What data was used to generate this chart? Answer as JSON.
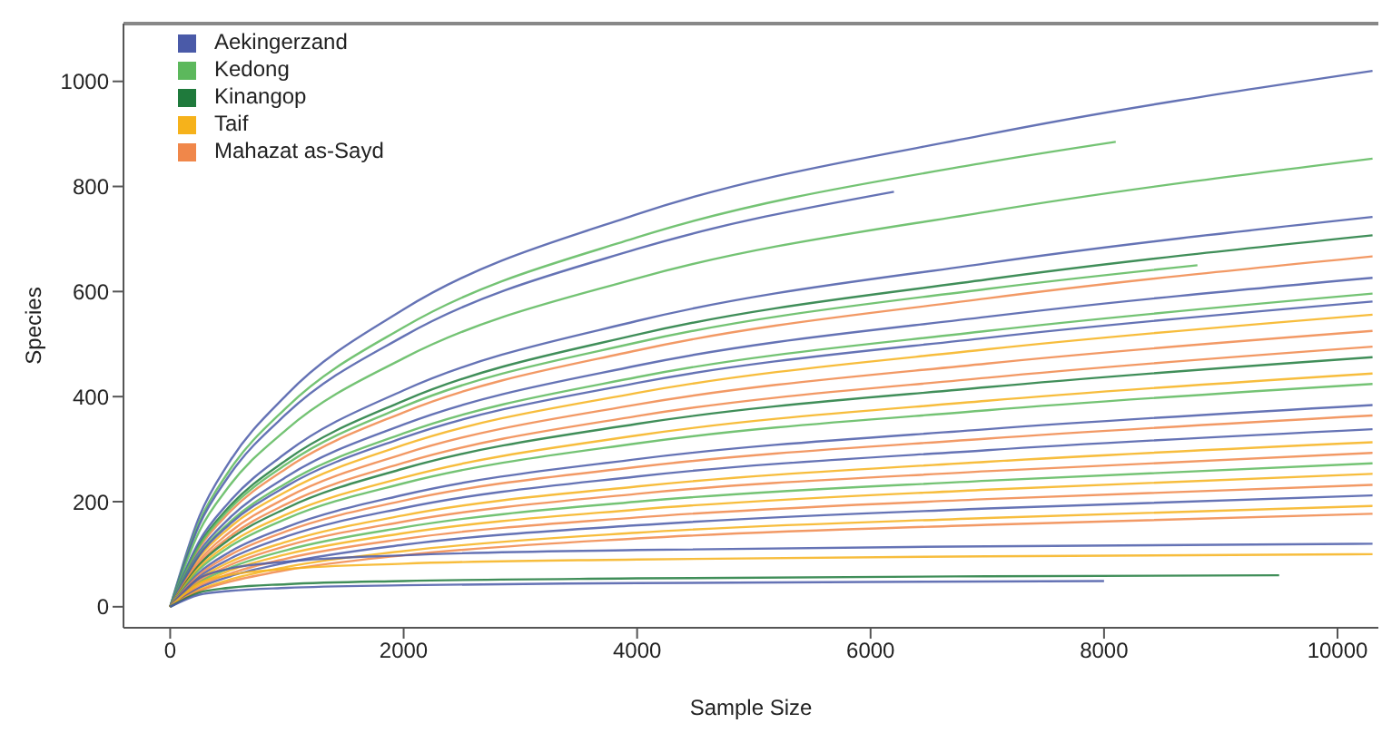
{
  "chart_data": {
    "type": "line",
    "xlabel": "Sample Size",
    "ylabel": "Species",
    "x": [
      0,
      250,
      500,
      1000,
      2000,
      4000,
      7000,
      10300
    ],
    "xlim": [
      -400,
      10350
    ],
    "xticks": [
      0,
      2000,
      4000,
      6000,
      8000,
      10000
    ],
    "ylim": [
      -40,
      1110
    ],
    "yticks": [
      0,
      200,
      400,
      600,
      800,
      1000
    ],
    "grid": false,
    "legend": "top left",
    "marker": "none",
    "line_style": "solid",
    "series": [
      {
        "name": "Aekingerzand",
        "color": "#4a5aa8",
        "values": [
          0,
          172,
          273,
          404,
          566,
          747,
          899,
          1020
        ]
      },
      {
        "name": "Kedong",
        "color": "#5cb85c",
        "x": [
          0,
          250,
          500,
          1000,
          2000,
          4000,
          7000,
          8100
        ],
        "values": [
          0,
          162,
          257,
          380,
          532,
          703,
          846,
          885
        ]
      },
      {
        "name": "Kinangop",
        "color": "#1f7a3c",
        "values": [
          0,
          119,
          189,
          280,
          392,
          518,
          623,
          707
        ]
      },
      {
        "name": "Taif",
        "color": "#f6b21b",
        "values": [
          0,
          94,
          149,
          220,
          308,
          407,
          490,
          556
        ]
      },
      {
        "name": "Mahazat as-Sayd",
        "color": "#f0874a",
        "values": [
          0,
          112,
          178,
          264,
          370,
          488,
          587,
          667
        ]
      },
      {
        "color": "#4a5aa8",
        "x": [
          0,
          250,
          500,
          1000,
          2000,
          4000,
          6200
        ],
        "values": [
          0,
          156,
          248,
          368,
          515,
          681,
          790
        ]
      },
      {
        "color": "#5cb85c",
        "values": [
          0,
          144,
          228,
          338,
          473,
          625,
          752,
          853
        ]
      },
      {
        "color": "#4a5aa8",
        "values": [
          0,
          125,
          198,
          294,
          412,
          544,
          654,
          742
        ]
      },
      {
        "color": "#5cb85c",
        "x": [
          0,
          250,
          500,
          1000,
          2000,
          4000,
          7000,
          8800
        ],
        "values": [
          0,
          116,
          184,
          272,
          381,
          503,
          605,
          650
        ]
      },
      {
        "color": "#4a5aa8",
        "values": [
          0,
          105,
          167,
          248,
          347,
          459,
          552,
          626
        ]
      },
      {
        "color": "#5cb85c",
        "values": [
          0,
          100,
          159,
          236,
          330,
          437,
          525,
          596
        ]
      },
      {
        "color": "#4a5aa8",
        "values": [
          0,
          98,
          155,
          230,
          322,
          426,
          512,
          581
        ]
      },
      {
        "color": "#f0874a",
        "values": [
          0,
          88,
          140,
          208,
          291,
          385,
          463,
          525
        ]
      },
      {
        "color": "#f0874a",
        "values": [
          0,
          83,
          132,
          196,
          274,
          363,
          436,
          495
        ]
      },
      {
        "color": "#1f7a3c",
        "values": [
          0,
          80,
          127,
          188,
          263,
          348,
          418,
          475
        ]
      },
      {
        "color": "#f6b21b",
        "values": [
          0,
          75,
          119,
          176,
          246,
          326,
          392,
          444
        ]
      },
      {
        "color": "#5cb85c",
        "values": [
          0,
          71,
          113,
          168,
          235,
          311,
          374,
          424
        ]
      },
      {
        "color": "#4a5aa8",
        "values": [
          0,
          65,
          103,
          152,
          213,
          281,
          338,
          384
        ]
      },
      {
        "color": "#f0874a",
        "values": [
          0,
          61,
          97,
          144,
          202,
          266,
          320,
          364
        ]
      },
      {
        "color": "#4a5aa8",
        "values": [
          0,
          57,
          90,
          134,
          188,
          248,
          298,
          338
        ]
      },
      {
        "color": "#f6b21b",
        "values": [
          0,
          53,
          84,
          124,
          174,
          229,
          276,
          313
        ]
      },
      {
        "color": "#f0874a",
        "values": [
          0,
          49,
          78,
          116,
          162,
          215,
          258,
          293
        ]
      },
      {
        "color": "#5cb85c",
        "values": [
          0,
          46,
          73,
          108,
          151,
          200,
          240,
          273
        ]
      },
      {
        "color": "#f6b21b",
        "values": [
          0,
          43,
          68,
          100,
          140,
          185,
          223,
          253
        ]
      },
      {
        "color": "#f0874a",
        "values": [
          0,
          39,
          62,
          92,
          129,
          170,
          205,
          232
        ]
      },
      {
        "color": "#4a5aa8",
        "values": [
          0,
          36,
          57,
          84,
          118,
          155,
          187,
          212
        ]
      },
      {
        "color": "#f6b21b",
        "values": [
          0,
          32,
          51,
          76,
          106,
          141,
          169,
          192
        ]
      },
      {
        "color": "#f0874a",
        "values": [
          0,
          30,
          47,
          70,
          98,
          130,
          156,
          177
        ]
      },
      {
        "color": "#4a5aa8",
        "values": [
          0,
          54,
          72,
          86,
          98,
          108,
          115,
          120
        ]
      },
      {
        "color": "#f6b21b",
        "values": [
          0,
          45,
          60,
          72,
          82,
          90,
          96,
          100
        ]
      },
      {
        "color": "#1f7a3c",
        "x": [
          0,
          250,
          500,
          1000,
          2000,
          4000,
          7000,
          9500
        ],
        "values": [
          0,
          27,
          36,
          43,
          49,
          54,
          58,
          60
        ]
      },
      {
        "color": "#4a5aa8",
        "x": [
          0,
          250,
          500,
          1000,
          2000,
          4000,
          7000,
          8000
        ],
        "values": [
          0,
          23,
          30,
          36,
          41,
          45,
          48,
          49
        ]
      }
    ]
  }
}
